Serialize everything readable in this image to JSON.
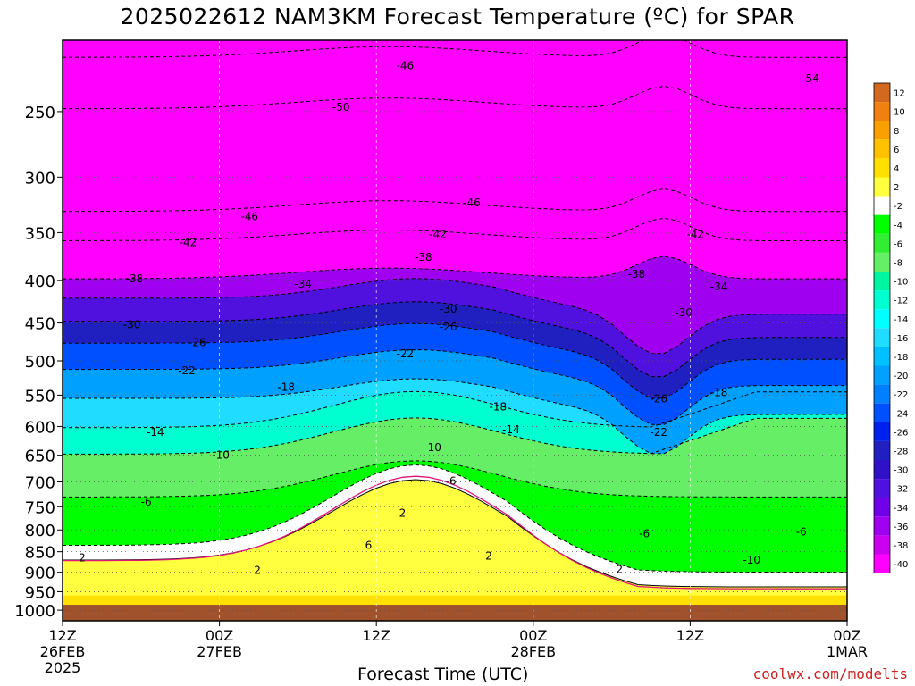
{
  "title": "2025022612 NAM3KM Forecast Temperature (ºC) for SPAR",
  "watermark": "coolwx.com/modelts",
  "chart_data": {
    "type": "heatmap",
    "title": "2025022612 NAM3KM Forecast Temperature (ºC) for SPAR",
    "xlabel": "Forecast Time (UTC)",
    "ylabel": "",
    "y_axis": {
      "scale": "pressure (log)",
      "ylim": [
        1030,
        205
      ],
      "ticks": [
        250,
        300,
        350,
        400,
        450,
        500,
        550,
        600,
        650,
        700,
        750,
        800,
        850,
        900,
        950,
        1000
      ]
    },
    "x_axis": {
      "xlim_hours": [
        0,
        60
      ],
      "ticks": [
        {
          "hour": 0,
          "lines": [
            "12Z",
            "26FEB",
            "2025"
          ]
        },
        {
          "hour": 12,
          "lines": [
            "00Z",
            "27FEB"
          ]
        },
        {
          "hour": 24,
          "lines": [
            "12Z"
          ]
        },
        {
          "hour": 36,
          "lines": [
            "00Z",
            "28FEB"
          ]
        },
        {
          "hour": 48,
          "lines": [
            "12Z"
          ]
        },
        {
          "hour": 60,
          "lines": [
            "00Z",
            "1MAR"
          ]
        }
      ]
    },
    "colorbar": {
      "labels": [
        "12",
        "10",
        "8",
        "6",
        "4",
        "2",
        "-2",
        "-4",
        "-6",
        "-8",
        "-10",
        "-12",
        "-14",
        "-16",
        "-18",
        "-20",
        "-22",
        "-24",
        "-26",
        "-28",
        "-30",
        "-32",
        "-34",
        "-36",
        "-38",
        "-40"
      ],
      "colors": [
        "#d2691e",
        "#f08010",
        "#f8a000",
        "#ffc000",
        "#ffe000",
        "#ffff40",
        "#ffffff",
        "#00ff00",
        "#32ee32",
        "#66ee66",
        "#00f5a0",
        "#00ffd0",
        "#00ffff",
        "#20ddff",
        "#00c0ff",
        "#00a0ff",
        "#0080ff",
        "#0050ff",
        "#0020ee",
        "#2020c0",
        "#3010c8",
        "#5010dd",
        "#7000e8",
        "#a000f0",
        "#cc00ee",
        "#ff00ff"
      ]
    },
    "isotherm_levels_at_hour_6": [
      {
        "temp": -54,
        "pressure": 215
      },
      {
        "temp": -50,
        "pressure": 248
      },
      {
        "temp": -46,
        "pressure": 330
      },
      {
        "temp": -42,
        "pressure": 358
      },
      {
        "temp": -38,
        "pressure": 398
      },
      {
        "temp": -34,
        "pressure": 420
      },
      {
        "temp": -30,
        "pressure": 448
      },
      {
        "temp": -26,
        "pressure": 476
      },
      {
        "temp": -22,
        "pressure": 512
      },
      {
        "temp": -18,
        "pressure": 555
      },
      {
        "temp": -14,
        "pressure": 602
      },
      {
        "temp": -10,
        "pressure": 648
      },
      {
        "temp": -6,
        "pressure": 730
      },
      {
        "temp": -2,
        "pressure": 835
      },
      {
        "temp": 2,
        "pressure": 870
      }
    ],
    "contour_labels": [
      {
        "text": "-46",
        "hour": 26.2,
        "pressure": 220
      },
      {
        "text": "-54",
        "hour": 57.2,
        "pressure": 228
      },
      {
        "text": "-50",
        "hour": 21.3,
        "pressure": 247
      },
      {
        "text": "-46",
        "hour": 14.3,
        "pressure": 335
      },
      {
        "text": "-46",
        "hour": 31.3,
        "pressure": 322
      },
      {
        "text": "-42",
        "hour": 9.6,
        "pressure": 360
      },
      {
        "text": "-42",
        "hour": 28.7,
        "pressure": 352
      },
      {
        "text": "-42",
        "hour": 48.4,
        "pressure": 352
      },
      {
        "text": "-38",
        "hour": 5.5,
        "pressure": 398
      },
      {
        "text": "-38",
        "hour": 27.6,
        "pressure": 375
      },
      {
        "text": "-38",
        "hour": 43.9,
        "pressure": 393
      },
      {
        "text": "-34",
        "hour": 18.4,
        "pressure": 404
      },
      {
        "text": "-34",
        "hour": 50.2,
        "pressure": 407
      },
      {
        "text": "-30",
        "hour": 5.3,
        "pressure": 452
      },
      {
        "text": "-30",
        "hour": 29.5,
        "pressure": 433
      },
      {
        "text": "-30",
        "hour": 47.5,
        "pressure": 437
      },
      {
        "text": "-26",
        "hour": 10.3,
        "pressure": 475
      },
      {
        "text": "-26",
        "hour": 29.5,
        "pressure": 455
      },
      {
        "text": "-22",
        "hour": 9.5,
        "pressure": 514
      },
      {
        "text": "-22",
        "hour": 26.2,
        "pressure": 490
      },
      {
        "text": "-18",
        "hour": 17.1,
        "pressure": 538
      },
      {
        "text": "-18",
        "hour": 33.3,
        "pressure": 568
      },
      {
        "text": "-18",
        "hour": 50.2,
        "pressure": 546
      },
      {
        "text": "-26",
        "hour": 45.6,
        "pressure": 556
      },
      {
        "text": "-14",
        "hour": 7.1,
        "pressure": 610
      },
      {
        "text": "-14",
        "hour": 34.3,
        "pressure": 605
      },
      {
        "text": "-22",
        "hour": 45.6,
        "pressure": 610
      },
      {
        "text": "-10",
        "hour": 12.1,
        "pressure": 650
      },
      {
        "text": "-10",
        "hour": 28.3,
        "pressure": 636
      },
      {
        "text": "-6",
        "hour": 6.4,
        "pressure": 740
      },
      {
        "text": "-6",
        "hour": 29.7,
        "pressure": 698
      },
      {
        "text": "-6",
        "hour": 44.5,
        "pressure": 808
      },
      {
        "text": "-6",
        "hour": 56.5,
        "pressure": 804
      },
      {
        "text": "-10",
        "hour": 52.7,
        "pressure": 870
      },
      {
        "text": "2",
        "hour": 26.0,
        "pressure": 764
      },
      {
        "text": "2",
        "hour": 32.6,
        "pressure": 860
      },
      {
        "text": "2",
        "hour": 1.5,
        "pressure": 865
      },
      {
        "text": "2",
        "hour": 14.9,
        "pressure": 895
      },
      {
        "text": "6",
        "hour": 23.4,
        "pressure": 835
      },
      {
        "text": "2",
        "hour": 42.6,
        "pressure": 893
      }
    ]
  }
}
